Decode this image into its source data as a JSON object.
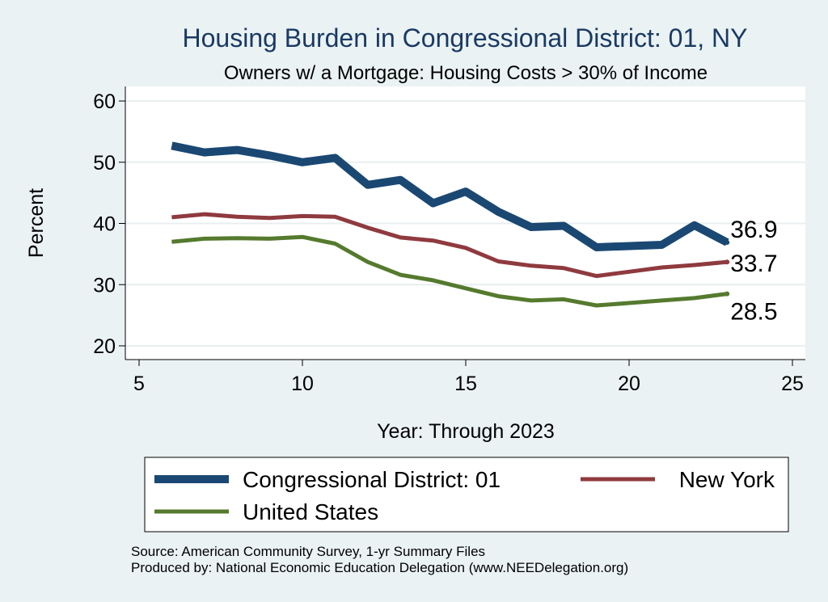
{
  "chart_data": {
    "type": "line",
    "title": "Housing Burden in Congressional District:  01, NY",
    "subtitle": "Owners w/ a Mortgage: Housing Costs > 30% of Income",
    "xlabel": "Year: Through 2023",
    "ylabel": "Percent",
    "xlim": [
      5,
      25
    ],
    "ylim": [
      20,
      60
    ],
    "x_ticks": [
      5,
      10,
      15,
      20,
      25
    ],
    "y_ticks": [
      20,
      30,
      40,
      50,
      60
    ],
    "grid": true,
    "legend_position": "bottom",
    "series": [
      {
        "name": "Congressional District:  01",
        "color": "#1a4873",
        "x": [
          6,
          7,
          8,
          9,
          10,
          11,
          12,
          13,
          14,
          15,
          16,
          17,
          18,
          19,
          21,
          22,
          23
        ],
        "values": [
          52.7,
          51.6,
          52.0,
          51.1,
          50.0,
          50.7,
          46.3,
          47.1,
          43.3,
          45.2,
          41.9,
          39.4,
          39.6,
          36.1,
          36.5,
          39.7,
          36.9
        ],
        "end_label": "36.9"
      },
      {
        "name": "New York",
        "color": "#8f3a3f",
        "x": [
          6,
          7,
          8,
          9,
          10,
          11,
          12,
          13,
          14,
          15,
          16,
          17,
          18,
          19,
          20,
          21,
          22,
          23
        ],
        "values": [
          41.0,
          41.5,
          41.1,
          40.9,
          41.2,
          41.1,
          39.3,
          37.7,
          37.2,
          36.0,
          33.8,
          33.1,
          32.7,
          31.4,
          32.1,
          32.8,
          33.2,
          33.7
        ],
        "end_label": "33.7"
      },
      {
        "name": "United States",
        "color": "#557a2e",
        "x": [
          6,
          7,
          8,
          9,
          10,
          11,
          12,
          13,
          14,
          15,
          16,
          17,
          18,
          19,
          20,
          21,
          22,
          23
        ],
        "values": [
          37.0,
          37.5,
          37.6,
          37.5,
          37.8,
          36.7,
          33.7,
          31.6,
          30.7,
          29.4,
          28.1,
          27.4,
          27.6,
          26.6,
          27.0,
          27.4,
          27.8,
          28.5
        ],
        "end_label": "28.5"
      }
    ]
  },
  "notes": {
    "source": "Source: American Community Survey, 1-yr Summary Files",
    "produced": "Produced by: National Economic Education Delegation (www.NEEDelegation.org)"
  }
}
